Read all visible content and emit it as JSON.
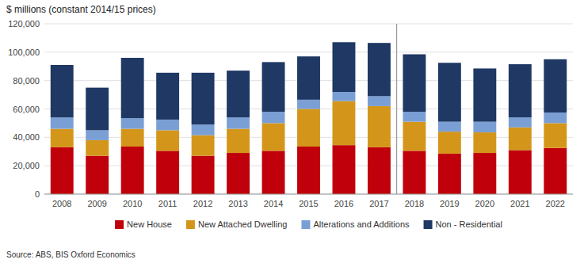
{
  "chart_data": {
    "type": "bar",
    "stacked": true,
    "title": "$ millions (constant 2014/15 prices)",
    "source": "Source: ABS, BIS Oxford Economics",
    "categories": [
      "2008",
      "2009",
      "2010",
      "2011",
      "2012",
      "2013",
      "2014",
      "2015",
      "2016",
      "2017",
      "2018",
      "2019",
      "2020",
      "2021",
      "2022"
    ],
    "series": [
      {
        "name": "New House",
        "color": "#c0000a",
        "values": [
          33000,
          27000,
          33500,
          30500,
          27000,
          29000,
          30500,
          33500,
          34500,
          33000,
          30500,
          28500,
          29000,
          31000,
          32500
        ]
      },
      {
        "name": "New Attached Dwelling",
        "color": "#d4961a",
        "values": [
          13000,
          11000,
          12500,
          14500,
          14500,
          17000,
          19500,
          26500,
          31000,
          29000,
          20500,
          15500,
          14500,
          16000,
          17500
        ]
      },
      {
        "name": "Alterations and Additions",
        "color": "#7a9fd4",
        "values": [
          8000,
          7000,
          7500,
          7500,
          7500,
          8000,
          8000,
          6500,
          6500,
          7000,
          7000,
          7000,
          7500,
          7000,
          7500
        ]
      },
      {
        "name": "Non - Residential",
        "color": "#1f3864",
        "values": [
          37000,
          30000,
          42500,
          33000,
          36500,
          33000,
          35000,
          30500,
          35000,
          37500,
          40500,
          41500,
          37500,
          37500,
          37500
        ]
      }
    ],
    "ylim": [
      0,
      120000
    ],
    "yticks": [
      0,
      {
        "value": 20000,
        "label": "20,000"
      },
      {
        "value": 40000,
        "label": "40,000"
      },
      {
        "value": 60000,
        "label": "60,000"
      },
      {
        "value": 80000,
        "label": "80,000"
      },
      {
        "value": 100000,
        "label": "100,000"
      },
      {
        "value": 120000,
        "label": "120,000"
      }
    ],
    "grid": true,
    "legend": "bottom"
  }
}
